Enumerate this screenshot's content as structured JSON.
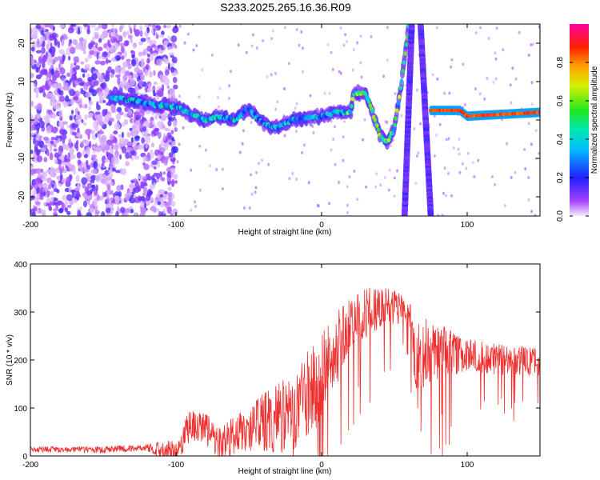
{
  "title": "S233.2025.265.16.36.R09",
  "colors": {
    "snr_line": "#ee3030",
    "frame": "#000000"
  },
  "chart_data": [
    {
      "type": "heatmap",
      "name": "spectrogram",
      "xlabel": "Height of straight line (km)",
      "ylabel": "Frequency (Hz)",
      "xlim": [
        -200,
        150
      ],
      "ylim": [
        -25,
        25
      ],
      "xticks": [
        -200,
        -100,
        0,
        100
      ],
      "yticks": [
        -20,
        -10,
        0,
        10,
        20
      ],
      "colorbar": {
        "label": "Normalized spectral amplitude",
        "range": [
          0,
          1
        ],
        "ticks": [
          "0.0",
          "0.2",
          "0.4",
          "0.6",
          "0.8"
        ],
        "tick_values": [
          0.0,
          0.2,
          0.4,
          0.6,
          0.8
        ]
      },
      "features": {
        "noise_region_km": [
          -200,
          -100
        ],
        "main_trace": [
          [
            -145,
            6
          ],
          [
            -130,
            5
          ],
          [
            -115,
            4
          ],
          [
            -100,
            3.5
          ],
          [
            -90,
            1.5
          ],
          [
            -80,
            0
          ],
          [
            -70,
            1
          ],
          [
            -60,
            0
          ],
          [
            -50,
            3
          ],
          [
            -40,
            -1
          ],
          [
            -30,
            -2
          ],
          [
            -20,
            0
          ],
          [
            -10,
            0.5
          ],
          [
            0,
            1
          ],
          [
            10,
            2
          ],
          [
            20,
            2
          ],
          [
            22,
            7
          ],
          [
            30,
            7
          ],
          [
            35,
            2
          ],
          [
            40,
            -4
          ],
          [
            45,
            -6
          ],
          [
            50,
            -2
          ],
          [
            55,
            10
          ],
          [
            60,
            25
          ]
        ],
        "steep_line_km": [
          [
            57,
            -25
          ],
          [
            62,
            25
          ]
        ],
        "right_line_km": [
          [
            68,
            25
          ],
          [
            75,
            -25
          ]
        ],
        "flat_trace": [
          [
            75,
            2.5
          ],
          [
            95,
            2.5
          ],
          [
            100,
            1
          ],
          [
            150,
            2
          ]
        ]
      }
    },
    {
      "type": "line",
      "name": "snr",
      "xlabel": "Height of straight line (km)",
      "ylabel": "SNR (10 * v/v)",
      "xlim": [
        -200,
        150
      ],
      "ylim": [
        0,
        400
      ],
      "xticks": [
        -200,
        -100,
        0,
        100
      ],
      "yticks": [
        0,
        100,
        200,
        300,
        400
      ],
      "envelope": [
        [
          -200,
          20
        ],
        [
          -150,
          20
        ],
        [
          -120,
          25
        ],
        [
          -100,
          35
        ],
        [
          -90,
          100
        ],
        [
          -80,
          90
        ],
        [
          -70,
          70
        ],
        [
          -60,
          80
        ],
        [
          -50,
          110
        ],
        [
          -40,
          130
        ],
        [
          -30,
          150
        ],
        [
          -20,
          180
        ],
        [
          -10,
          220
        ],
        [
          0,
          260
        ],
        [
          10,
          300
        ],
        [
          20,
          330
        ],
        [
          30,
          350
        ],
        [
          40,
          355
        ],
        [
          50,
          345
        ],
        [
          60,
          330
        ],
        [
          65,
          270
        ],
        [
          70,
          290
        ],
        [
          80,
          280
        ],
        [
          90,
          260
        ],
        [
          100,
          245
        ],
        [
          120,
          235
        ],
        [
          150,
          225
        ]
      ],
      "jitter": [
        [
          -200,
          12
        ],
        [
          -120,
          15
        ],
        [
          -100,
          60
        ],
        [
          -60,
          80
        ],
        [
          -40,
          120
        ],
        [
          -20,
          170
        ],
        [
          0,
          190
        ],
        [
          20,
          120
        ],
        [
          60,
          60
        ],
        [
          65,
          160
        ],
        [
          80,
          120
        ],
        [
          100,
          70
        ],
        [
          150,
          60
        ]
      ]
    }
  ]
}
